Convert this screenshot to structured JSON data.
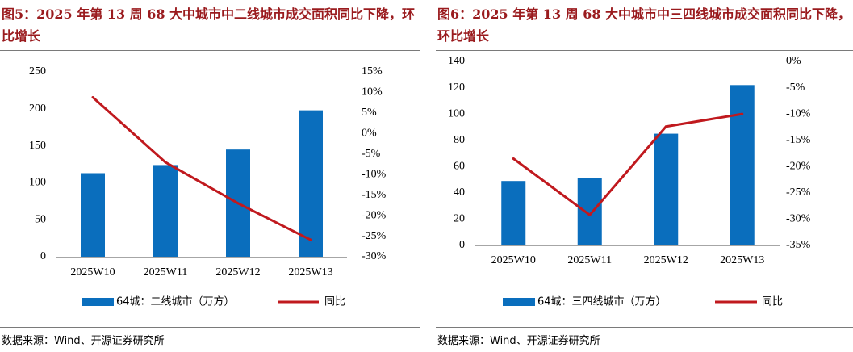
{
  "panels": [
    {
      "title": "图5：2025 年第 13 周 68 大中城市中二线城市成交面积同比下降，环比增长",
      "source": "数据来源：Wind、开源证券研究所",
      "chart_data": {
        "type": "bar",
        "categories": [
          "2025W10",
          "2025W11",
          "2025W12",
          "2025W13"
        ],
        "series": [
          {
            "name": "64城：二线城市（万方）",
            "type": "bar",
            "axis": "left",
            "color": "#0a6ebd",
            "values": [
              113,
              124,
              145,
              198
            ]
          },
          {
            "name": "同比",
            "type": "line",
            "axis": "right",
            "color": "#c0191e",
            "values": [
              8.8,
              -7.0,
              -17.0,
              -25.9
            ]
          }
        ],
        "y_left": {
          "min": 0,
          "max": 250,
          "ticks": [
            0,
            50,
            100,
            150,
            200,
            250
          ]
        },
        "y_right": {
          "min": -30,
          "max": 15,
          "ticks": [
            "-30%",
            "-25%",
            "-20%",
            "-15%",
            "-10%",
            "-5%",
            "0%",
            "5%",
            "10%",
            "15%"
          ]
        },
        "legend": "bottom",
        "grid": false
      }
    },
    {
      "title": "图6：2025 年第 13 周 68 大中城市中三四线城市成交面积同比下降，环比增长",
      "source": "数据来源：Wind、开源证券研究所",
      "chart_data": {
        "type": "bar",
        "categories": [
          "2025W10",
          "2025W11",
          "2025W12",
          "2025W13"
        ],
        "series": [
          {
            "name": "64城：三四线城市（万方）",
            "type": "bar",
            "axis": "left",
            "color": "#0a6ebd",
            "values": [
              49,
              51,
              85,
              122
            ]
          },
          {
            "name": "同比",
            "type": "line",
            "axis": "right",
            "color": "#c0191e",
            "values": [
              -18.5,
              -29.2,
              -12.4,
              -10.0
            ]
          }
        ],
        "y_left": {
          "min": 0,
          "max": 140,
          "ticks": [
            0,
            20,
            40,
            60,
            80,
            100,
            120,
            140
          ]
        },
        "y_right": {
          "min": -35,
          "max": 0,
          "ticks": [
            "-35%",
            "-30%",
            "-25%",
            "-20%",
            "-15%",
            "-10%",
            "-5%",
            "0%"
          ]
        },
        "legend": "bottom",
        "grid": false
      }
    }
  ]
}
